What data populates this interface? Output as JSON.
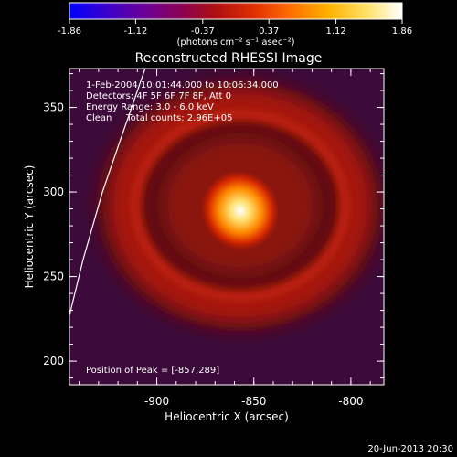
{
  "chart_data": {
    "type": "heatmap",
    "title": "Reconstructed RHESSI Image",
    "colorbar": {
      "ticks": [
        "-1.86",
        "-1.12",
        "-0.37",
        "0.37",
        "1.12",
        "1.86"
      ],
      "unit_label": "(photons cm⁻² s⁻¹ asec⁻²)",
      "range": [
        -1.86,
        1.86
      ],
      "colormap": [
        "#0000ff",
        "#3a00cc",
        "#6a009a",
        "#8a0055",
        "#b01010",
        "#e03000",
        "#ff7000",
        "#ffb000",
        "#ffe060",
        "#ffffff"
      ]
    },
    "xlabel": "Heliocentric X (arcsec)",
    "ylabel": "Heliocentric Y (arcsec)",
    "xlim": [
      -945,
      -783
    ],
    "ylim": [
      186,
      373
    ],
    "xticks": [
      {
        "v": -900,
        "label": "-900"
      },
      {
        "v": -850,
        "label": "-850"
      },
      {
        "v": -800,
        "label": "-800"
      }
    ],
    "yticks": [
      {
        "v": 200,
        "label": "200"
      },
      {
        "v": 250,
        "label": "250"
      },
      {
        "v": 300,
        "label": "300"
      },
      {
        "v": 350,
        "label": "350"
      }
    ],
    "peak": {
      "x": -857,
      "y": 289,
      "value": 1.86
    },
    "ring": {
      "center_x": -857,
      "center_y": 292,
      "radius": 60,
      "value": 0.6
    },
    "limb_line": [
      {
        "x": -945,
        "y": 227
      },
      {
        "x": -938,
        "y": 260
      },
      {
        "x": -928,
        "y": 300
      },
      {
        "x": -916,
        "y": 340
      },
      {
        "x": -906,
        "y": 373
      }
    ],
    "annotations": [
      "1-Feb-2004 10:01:44.000 to 10:06:34.000",
      "Detectors: 4F 5F 6F 7F 8F, Att 0",
      "Energy Range: 3.0 - 6.0 keV",
      "Clean     Total counts: 2.96E+05"
    ],
    "peak_label": "Position of Peak = [-857,289]",
    "timestamp": "20-Jun-2013 20:30"
  }
}
